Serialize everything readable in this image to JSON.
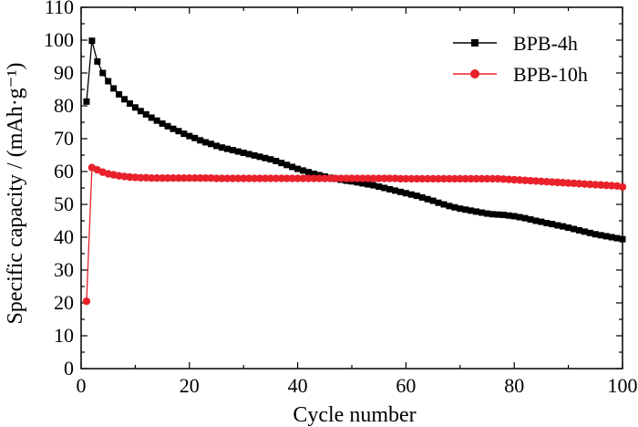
{
  "chart_data": {
    "type": "line",
    "xlabel": "Cycle number",
    "ylabel": "Specific capacity / (mAh·g⁻¹)",
    "xlim": [
      0,
      100
    ],
    "ylim": [
      0,
      110
    ],
    "xticks": [
      0,
      20,
      40,
      60,
      80,
      100
    ],
    "yticks": [
      0,
      10,
      20,
      30,
      40,
      50,
      60,
      70,
      80,
      90,
      100,
      110
    ],
    "grid": false,
    "legend_position": "top-right",
    "x": [
      1,
      2,
      3,
      4,
      5,
      6,
      7,
      8,
      9,
      10,
      11,
      12,
      13,
      14,
      15,
      16,
      17,
      18,
      19,
      20,
      21,
      22,
      23,
      24,
      25,
      26,
      27,
      28,
      29,
      30,
      31,
      32,
      33,
      34,
      35,
      36,
      37,
      38,
      39,
      40,
      41,
      42,
      43,
      44,
      45,
      46,
      47,
      48,
      49,
      50,
      51,
      52,
      53,
      54,
      55,
      56,
      57,
      58,
      59,
      60,
      61,
      62,
      63,
      64,
      65,
      66,
      67,
      68,
      69,
      70,
      71,
      72,
      73,
      74,
      75,
      76,
      77,
      78,
      79,
      80,
      81,
      82,
      83,
      84,
      85,
      86,
      87,
      88,
      89,
      90,
      91,
      92,
      93,
      94,
      95,
      96,
      97,
      98,
      99,
      100
    ],
    "series": [
      {
        "name": "BPB-4h",
        "color": "#000000",
        "marker": "square",
        "values": [
          81.3,
          99.8,
          93.5,
          90.0,
          87.5,
          85.3,
          83.5,
          82.0,
          80.7,
          79.5,
          78.4,
          77.4,
          76.4,
          75.5,
          74.6,
          73.8,
          73.0,
          72.3,
          71.5,
          70.8,
          70.2,
          69.5,
          68.9,
          68.4,
          67.8,
          67.3,
          66.9,
          66.5,
          66.1,
          65.7,
          65.3,
          64.9,
          64.5,
          64.1,
          63.7,
          63.2,
          62.6,
          62.0,
          61.4,
          60.8,
          60.3,
          59.8,
          59.3,
          58.9,
          58.5,
          58.1,
          57.8,
          57.5,
          57.2,
          57.0,
          56.7,
          56.4,
          56.1,
          55.8,
          55.4,
          55.0,
          54.6,
          54.2,
          53.8,
          53.4,
          53.0,
          52.6,
          52.1,
          51.6,
          51.1,
          50.5,
          50.0,
          49.5,
          49.1,
          48.7,
          48.4,
          48.1,
          47.8,
          47.5,
          47.2,
          47.0,
          46.9,
          46.8,
          46.6,
          46.4,
          46.1,
          45.8,
          45.4,
          45.0,
          44.7,
          44.3,
          44.0,
          43.6,
          43.3,
          42.9,
          42.5,
          42.1,
          41.7,
          41.3,
          40.9,
          40.6,
          40.3,
          40.0,
          39.7,
          39.4
        ]
      },
      {
        "name": "BPB-10h",
        "color": "#e8212b",
        "marker": "circle",
        "values": [
          20.5,
          61.2,
          60.5,
          59.8,
          59.3,
          59.0,
          58.7,
          58.5,
          58.3,
          58.2,
          58.1,
          58.1,
          58.0,
          58.0,
          58.0,
          58.0,
          58.0,
          58.0,
          58.0,
          58.0,
          58.0,
          58.0,
          58.0,
          58.0,
          57.9,
          57.9,
          57.9,
          57.9,
          57.9,
          57.9,
          57.9,
          57.9,
          57.9,
          57.9,
          57.9,
          57.9,
          57.9,
          57.9,
          57.9,
          57.9,
          57.9,
          57.9,
          57.9,
          57.9,
          57.9,
          57.9,
          57.9,
          57.9,
          57.9,
          57.9,
          57.9,
          57.9,
          57.9,
          57.9,
          57.9,
          57.9,
          57.9,
          57.9,
          57.8,
          57.8,
          57.8,
          57.8,
          57.8,
          57.8,
          57.8,
          57.8,
          57.8,
          57.8,
          57.8,
          57.8,
          57.8,
          57.8,
          57.8,
          57.8,
          57.8,
          57.8,
          57.8,
          57.7,
          57.6,
          57.5,
          57.4,
          57.3,
          57.2,
          57.1,
          57.0,
          56.9,
          56.8,
          56.7,
          56.6,
          56.5,
          56.4,
          56.3,
          56.2,
          56.1,
          56.0,
          55.9,
          55.8,
          55.7,
          55.6,
          55.3
        ]
      }
    ]
  }
}
